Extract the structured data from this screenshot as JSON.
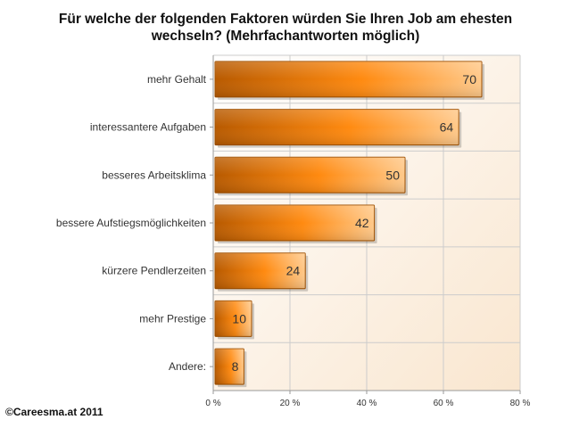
{
  "title_lines": [
    "Für welche der folgenden Faktoren würden Sie Ihren Job am ehesten",
    "wechseln? (Mehrfachantworten möglich)"
  ],
  "copyright": "©Careesma.at 2011",
  "colors": {
    "bar_dark": "#b85a00",
    "bar_main": "#ff8a10",
    "bar_light": "#ffc98a",
    "bar_edge": "#a05000",
    "plot_bg_start": "#ffffff",
    "plot_bg_end": "#f9e6cf",
    "grid": "#cccccc"
  },
  "chart_data": {
    "type": "bar",
    "orientation": "horizontal",
    "title": "Für welche der folgenden Faktoren würden Sie Ihren Job am ehesten wechseln? (Mehrfachantworten möglich)",
    "categories": [
      "mehr Gehalt",
      "interessantere Aufgaben",
      "besseres Arbeitsklima",
      "bessere Aufstiegsmöglichkeiten",
      "kürzere Pendlerzeiten",
      "mehr Prestige",
      "Andere:"
    ],
    "values": [
      70,
      64,
      50,
      42,
      24,
      10,
      8
    ],
    "data_labels": [
      "70",
      "64",
      "50",
      "42",
      "24",
      "10",
      "8"
    ],
    "xlim": [
      0,
      80
    ],
    "xticks": [
      0,
      20,
      40,
      60,
      80
    ],
    "xtick_labels": [
      "0 %",
      "20 %",
      "40 %",
      "60 %",
      "80 %"
    ],
    "grid": true,
    "legend": "none"
  }
}
